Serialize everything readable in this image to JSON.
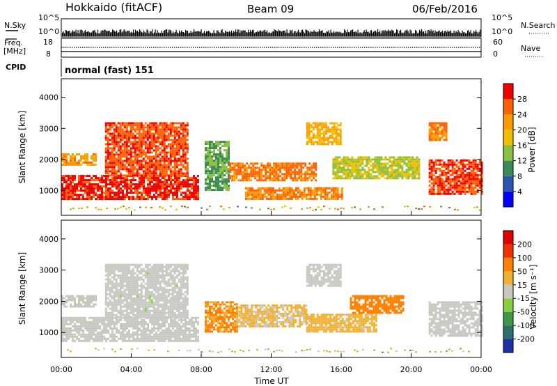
{
  "header": {
    "station": "Hokkaido (fitACF)",
    "beam": "Beam 09",
    "date": "06/Feb/2016"
  },
  "status_panels": {
    "nsky_label": "N.Sky",
    "nsky_ticks": [
      "10^5",
      "10^0"
    ],
    "nsearch_label": "N.Search",
    "nsearch_ticks": [
      "10^5",
      "10^0"
    ],
    "freq_label_1": "Freq.",
    "freq_label_2": "[MHz]",
    "freq_ticks": [
      "18",
      "8"
    ],
    "nave_label": "Nave",
    "nave_ticks": [
      "60",
      "0"
    ],
    "cpid_label": "CPID",
    "cpid_value": "normal (fast) 151"
  },
  "colors": {
    "power_scale": [
      "#0000ff",
      "#2a57b0",
      "#3a8a5a",
      "#88c040",
      "#f0c000",
      "#ff9a00",
      "#ff6000",
      "#f00000"
    ],
    "velocity_scale": [
      "#1f2fa8",
      "#2e6f6a",
      "#3e9a4a",
      "#86cf40",
      "#c8c8c0",
      "#f2b030",
      "#ff8000",
      "#f03000",
      "#e00000"
    ]
  },
  "chart_data": [
    {
      "type": "heatmap",
      "quantity": "power",
      "ylabel": "Slant Range [km]",
      "ylim": [
        200,
        4600
      ],
      "yticks": [
        "1000",
        "2000",
        "3000",
        "4000"
      ],
      "xlim_hours": [
        0,
        24
      ],
      "xticks": [
        "00:00",
        "04:00",
        "08:00",
        "12:00",
        "16:00",
        "20:00",
        "00:00"
      ],
      "colorbar_label": "Power [dB]",
      "colorbar_ticks": [
        "4",
        "8",
        "12",
        "16",
        "20",
        "24",
        "28"
      ],
      "color_range": [
        0,
        32
      ],
      "regions": [
        {
          "t0": 0.0,
          "t1": 7.8,
          "r0": 700,
          "r1": 1500,
          "v": 29
        },
        {
          "t0": 0.0,
          "t1": 2.0,
          "r0": 1800,
          "r1": 2200,
          "v": 22
        },
        {
          "t0": 2.5,
          "t1": 7.2,
          "r0": 1500,
          "r1": 3200,
          "v": 27
        },
        {
          "t0": 8.2,
          "t1": 9.6,
          "r0": 1000,
          "r1": 2600,
          "v": 12
        },
        {
          "t0": 9.6,
          "t1": 14.5,
          "r0": 1300,
          "r1": 1900,
          "v": 25
        },
        {
          "t0": 10.5,
          "t1": 16.0,
          "r0": 700,
          "r1": 1100,
          "v": 24
        },
        {
          "t0": 14.0,
          "t1": 16.0,
          "r0": 2500,
          "r1": 3200,
          "v": 21
        },
        {
          "t0": 15.5,
          "t1": 20.5,
          "r0": 1400,
          "r1": 2100,
          "v": 16
        },
        {
          "t0": 21.0,
          "t1": 24.0,
          "r0": 900,
          "r1": 2000,
          "v": 28
        },
        {
          "t0": 21.0,
          "t1": 22.0,
          "r0": 2600,
          "r1": 3200,
          "v": 24
        }
      ]
    },
    {
      "type": "heatmap",
      "quantity": "velocity",
      "ylabel": "Slant Range [km]",
      "ylim": [
        200,
        4600
      ],
      "yticks": [
        "1000",
        "2000",
        "3000",
        "4000"
      ],
      "xlim_hours": [
        0,
        24
      ],
      "xticks": [
        "00:00",
        "04:00",
        "08:00",
        "12:00",
        "16:00",
        "20:00",
        "00:00"
      ],
      "xlabel": "Time UT",
      "colorbar_label": "Velocity [m s⁻¹]",
      "colorbar_ticks": [
        "200",
        "100",
        "50",
        "15",
        "-15",
        "-50",
        "-100",
        "-200"
      ],
      "color_range": [
        -250,
        250
      ],
      "regions": [
        {
          "t0": 0.0,
          "t1": 7.8,
          "r0": 700,
          "r1": 1500,
          "v": -5
        },
        {
          "t0": 0.0,
          "t1": 2.0,
          "r0": 1800,
          "r1": 2200,
          "v": 0
        },
        {
          "t0": 2.5,
          "t1": 7.2,
          "r0": 1500,
          "r1": 3200,
          "v": -8
        },
        {
          "t0": 8.2,
          "t1": 10.0,
          "r0": 1000,
          "r1": 2000,
          "v": 90
        },
        {
          "t0": 10.0,
          "t1": 14.0,
          "r0": 1200,
          "r1": 1900,
          "v": 35
        },
        {
          "t0": 14.0,
          "t1": 18.0,
          "r0": 1000,
          "r1": 1600,
          "v": 45
        },
        {
          "t0": 14.0,
          "t1": 16.0,
          "r0": 2500,
          "r1": 3200,
          "v": 0
        },
        {
          "t0": 16.5,
          "t1": 19.5,
          "r0": 1600,
          "r1": 2200,
          "v": 110
        },
        {
          "t0": 21.0,
          "t1": 24.0,
          "r0": 900,
          "r1": 2000,
          "v": -5
        }
      ]
    }
  ]
}
